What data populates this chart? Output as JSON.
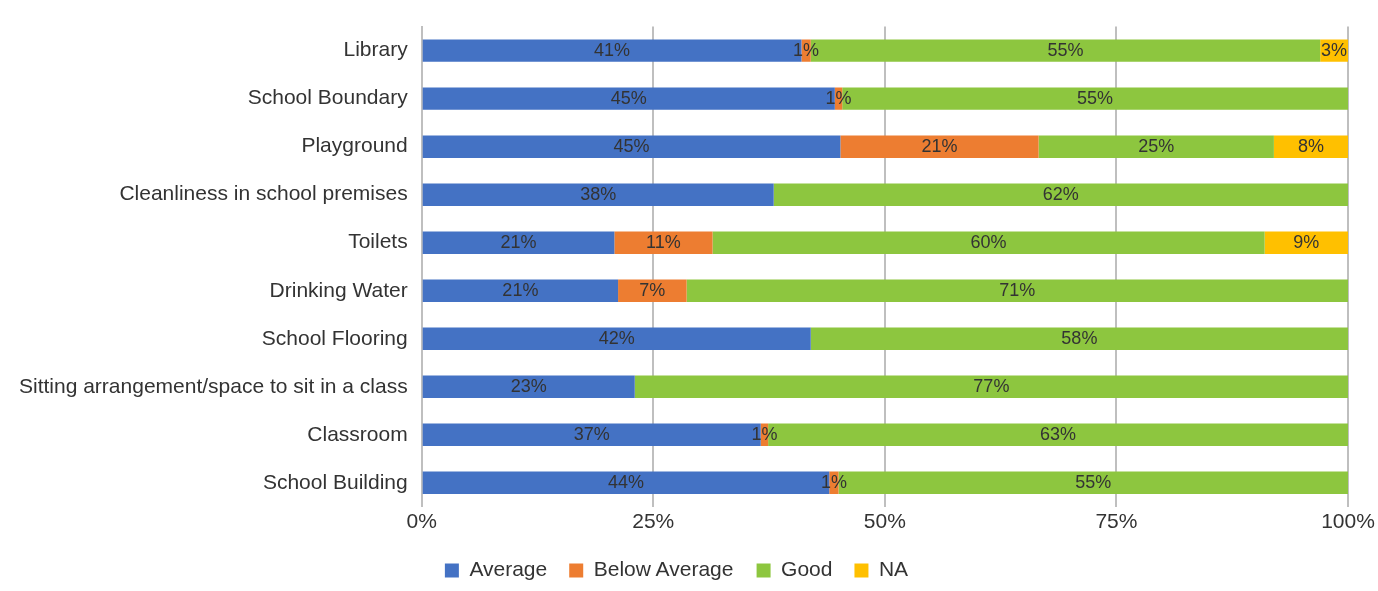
{
  "chart_data": {
    "type": "bar",
    "orientation": "horizontal",
    "stacked": true,
    "categories": [
      "Library",
      "School Boundary",
      "Playground",
      "Cleanliness in school premises",
      "Toilets",
      "Drinking Water",
      "School Flooring",
      "Sitting arrangement/space to sit in a class",
      "Classroom",
      "School Building"
    ],
    "series": [
      {
        "name": "Average",
        "color": "#4472c4",
        "values": [
          41,
          44.6,
          45.2,
          38,
          20.8,
          21.2,
          42,
          23,
          36.6,
          44
        ],
        "value_labels": [
          "41%",
          "45%",
          "45%",
          "38%",
          "21%",
          "21%",
          "42%",
          "23%",
          "37%",
          "44%"
        ]
      },
      {
        "name": "Below Average",
        "color": "#ed7d31",
        "values": [
          1,
          0.8,
          21.4,
          null,
          10.6,
          7.4,
          null,
          null,
          0.8,
          1
        ],
        "value_labels": [
          "1%",
          "1%",
          "21%",
          null,
          "11%",
          "7%",
          null,
          null,
          "1%",
          "1%"
        ]
      },
      {
        "name": "Good",
        "color": "#8dc63f",
        "values": [
          55,
          54.6,
          25.4,
          62,
          59.6,
          71.4,
          58,
          77,
          62.6,
          55
        ],
        "value_labels": [
          "55%",
          "55%",
          "25%",
          "62%",
          "60%",
          "71%",
          "58%",
          "77%",
          "63%",
          "55%"
        ]
      },
      {
        "name": "NA",
        "color": "#ffc000",
        "values": [
          3,
          null,
          8,
          null,
          9,
          null,
          null,
          null,
          null,
          null
        ],
        "value_labels": [
          "3%",
          null,
          "8%",
          null,
          "9%",
          null,
          null,
          null,
          null,
          null
        ]
      }
    ],
    "xlim": [
      0,
      100
    ],
    "xticks": [
      {
        "value": 0,
        "label": "0%"
      },
      {
        "value": 25,
        "label": "25%"
      },
      {
        "value": 50,
        "label": "50%"
      },
      {
        "value": 75,
        "label": "75%"
      },
      {
        "value": 100,
        "label": "100%"
      }
    ],
    "grid": "x",
    "legend": "bottom"
  }
}
